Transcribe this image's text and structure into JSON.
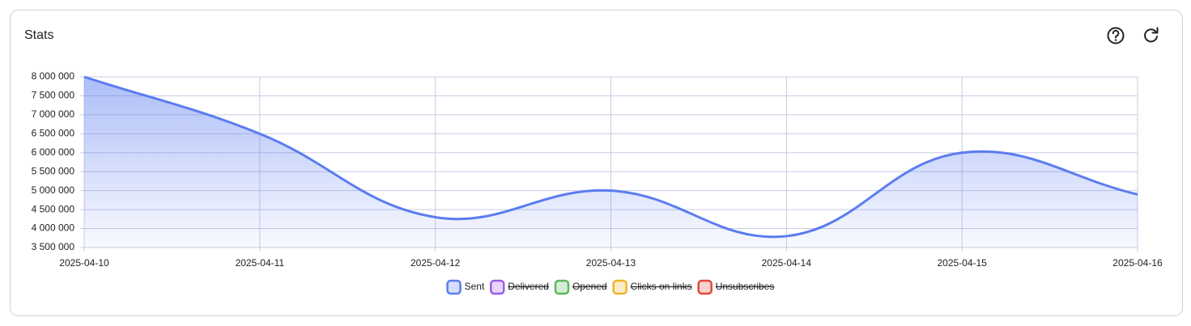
{
  "chart_data": {
    "type": "line",
    "title": "Stats",
    "categories": [
      "2025-04-10",
      "2025-04-11",
      "2025-04-12",
      "2025-04-13",
      "2025-04-14",
      "2025-04-15",
      "2025-04-16"
    ],
    "series": [
      {
        "name": "Sent",
        "color": "#5b7cf0",
        "values": [
          8000000,
          6500000,
          4300000,
          5000000,
          3800000,
          6000000,
          4900000
        ]
      },
      {
        "name": "Delivered",
        "color": "#9b5de5",
        "hidden": true
      },
      {
        "name": "Opened",
        "color": "#5cb85c",
        "hidden": true
      },
      {
        "name": "Clicks on links",
        "color": "#f0b429",
        "hidden": true
      },
      {
        "name": "Unsubscribes",
        "color": "#e0483d",
        "hidden": true
      }
    ],
    "ylim": [
      3500000,
      8000000
    ],
    "yticks": [
      {
        "value": 3500000,
        "label": "3 500 000"
      },
      {
        "value": 4000000,
        "label": "4 000 000"
      },
      {
        "value": 4500000,
        "label": "4 500 000"
      },
      {
        "value": 5000000,
        "label": "5 000 000"
      },
      {
        "value": 5500000,
        "label": "5 500 000"
      },
      {
        "value": 6000000,
        "label": "6 000 000"
      },
      {
        "value": 6500000,
        "label": "6 500 000"
      },
      {
        "value": 7000000,
        "label": "7 000 000"
      },
      {
        "value": 7500000,
        "label": "7 500 000"
      },
      {
        "value": 8000000,
        "label": "8 000 000"
      }
    ],
    "grid": true,
    "legend": "bottom",
    "smooth": true,
    "fill": true
  }
}
